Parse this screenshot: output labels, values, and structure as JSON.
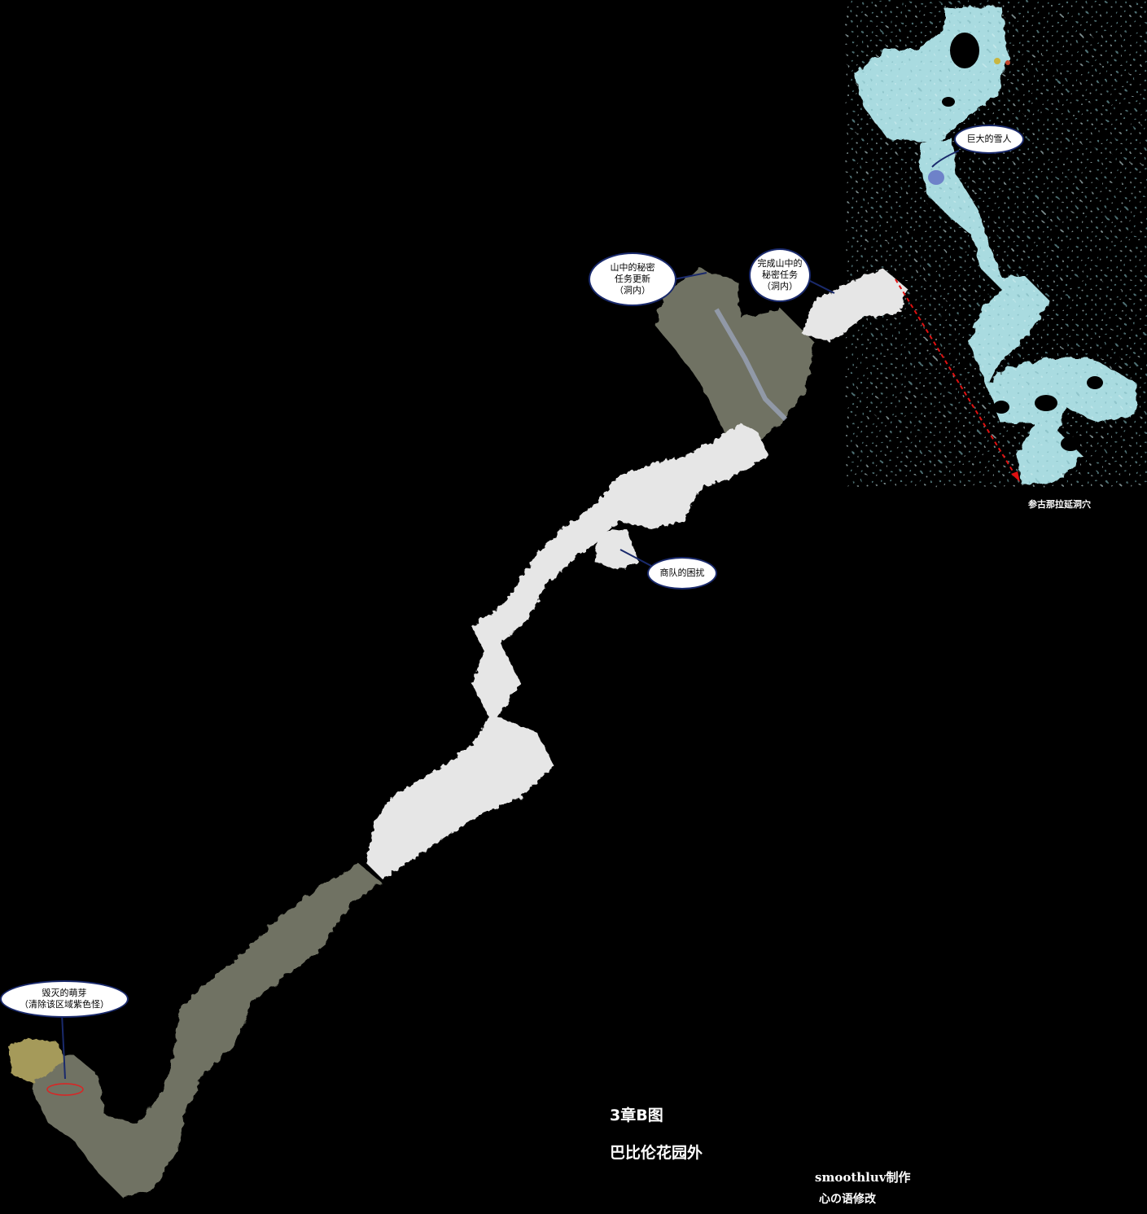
{
  "map": {
    "title": "3章B图",
    "subtitle": "巴比伦花园外",
    "credits": [
      "smoothluv制作",
      "心の语修改"
    ],
    "cave_label": "参古那拉延洞穴",
    "callouts": {
      "snowman": "巨大的雪人",
      "secret_update": "山中的秘密\n任务更新\n（洞内）",
      "secret_complete": "完成山中的\n秘密任务\n（洞内）",
      "caravan": "商队的困扰",
      "sprout": "毁灭的萌芽\n（清除该区域紫色怪）"
    },
    "colors": {
      "background": "#000000",
      "ice_cave": "#a9dbe0",
      "snow": "#e6e6e6",
      "forest": "#6f7263",
      "callout_border": "#1a2a6c",
      "route_arrow": "#e01010"
    },
    "icons": [
      "start-camp-icon",
      "quest-zone-ring-icon",
      "route-arrow-icon"
    ]
  }
}
